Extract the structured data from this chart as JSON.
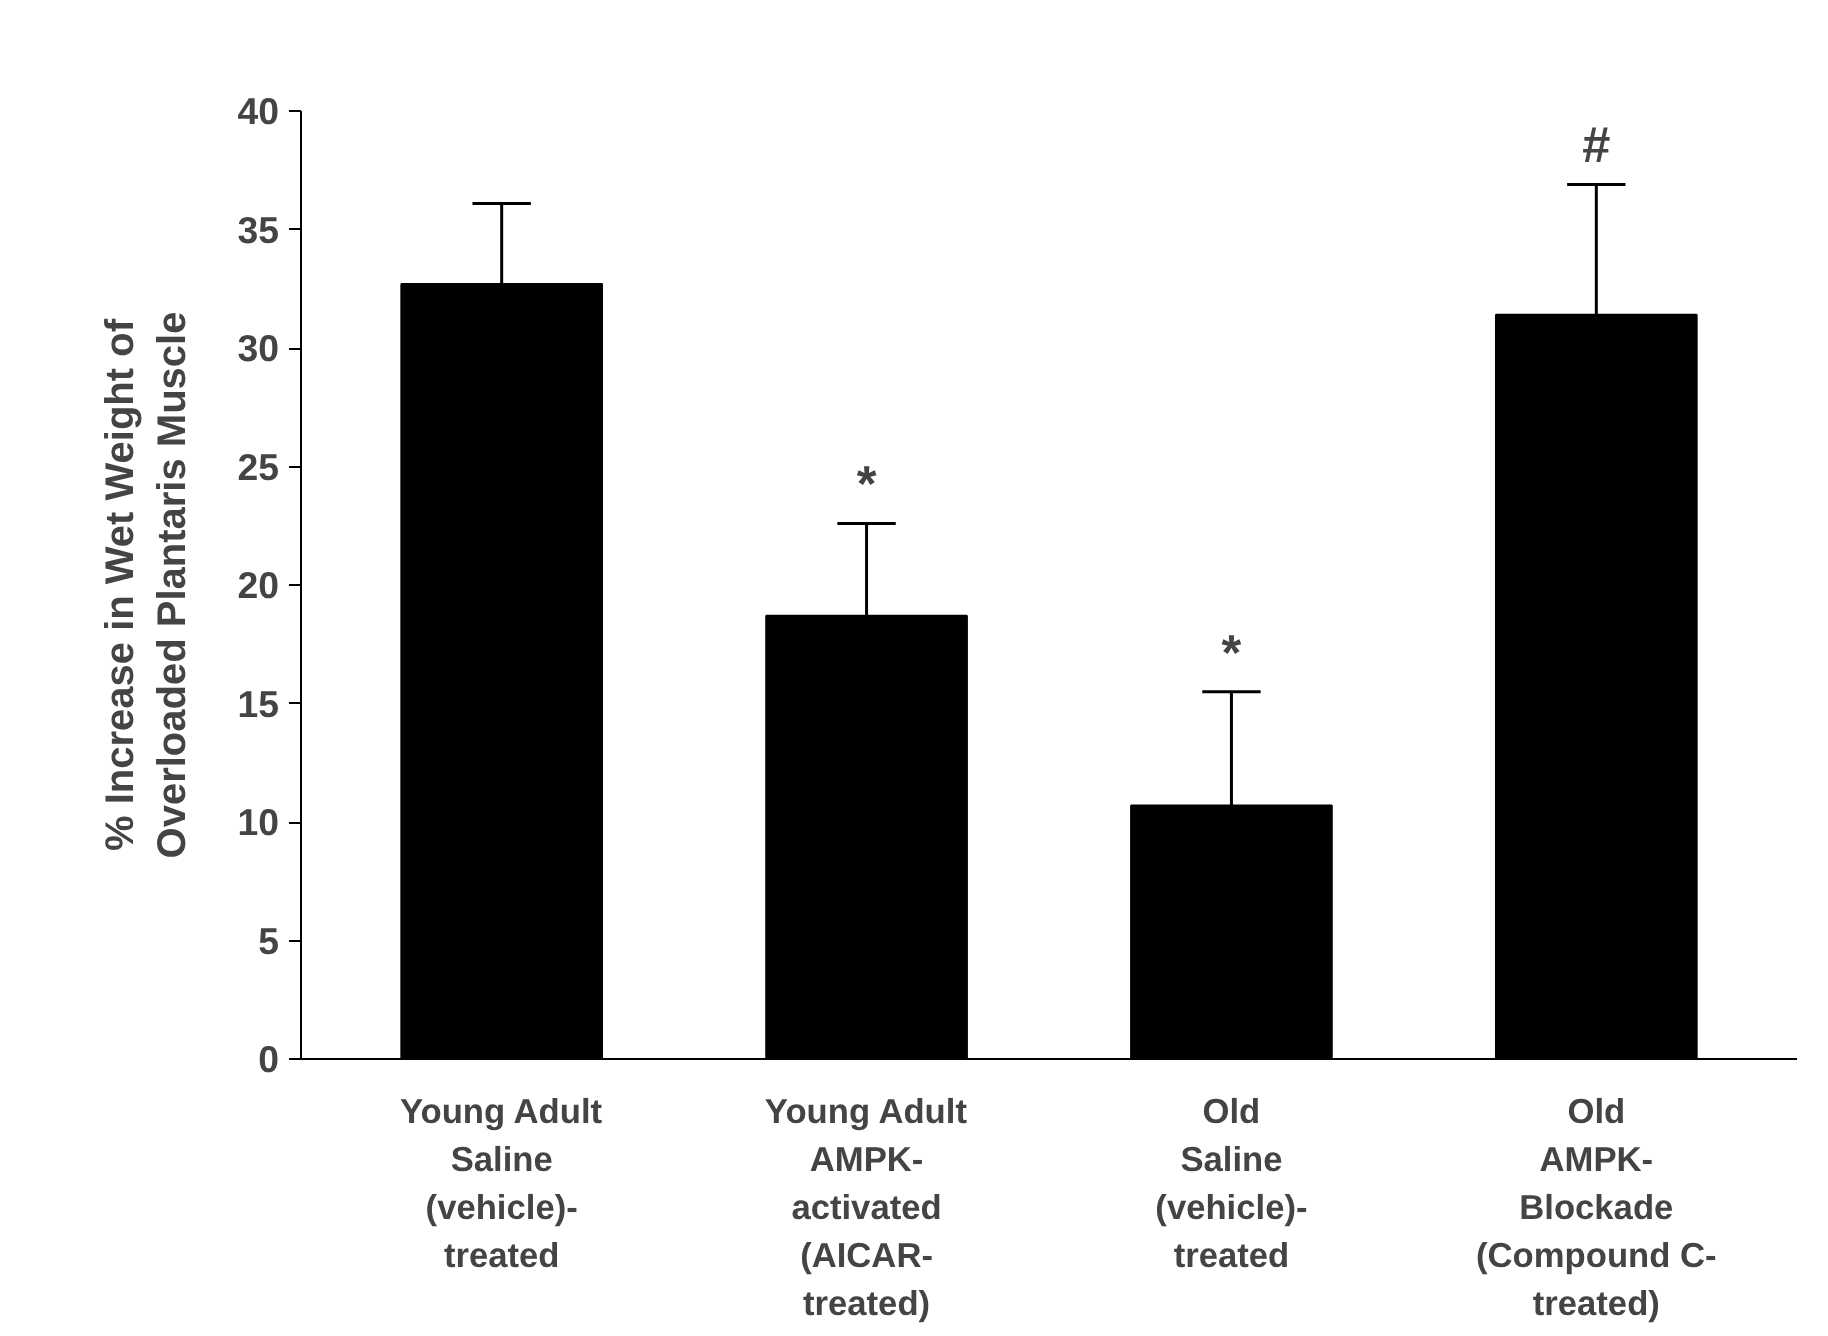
{
  "chart_data": {
    "type": "bar",
    "ylabel": "% Increase in Wet Weight of\nOverloaded Plantaris Muscle",
    "categories": [
      "Young Adult\nSaline\n(vehicle)-\ntreated",
      "Young Adult\nAMPK-\nactivated\n(AICAR-\ntreated)",
      "Old\nSaline\n(vehicle)-\ntreated",
      "Old\nAMPK-\nBlockade\n(Compound C-\ntreated)"
    ],
    "values": [
      32.7,
      18.7,
      10.7,
      31.4
    ],
    "errors": [
      [
        32.7,
        36.1
      ],
      [
        18.7,
        22.6
      ],
      [
        10.7,
        15.5
      ],
      [
        31.4,
        36.9
      ]
    ],
    "color": "#000000",
    "ylim": [
      0,
      40
    ],
    "yticks": [
      0,
      5,
      10,
      15,
      20,
      25,
      30,
      35,
      40
    ],
    "grid": false,
    "value_labels": [
      null,
      "*",
      "*",
      "#"
    ]
  }
}
